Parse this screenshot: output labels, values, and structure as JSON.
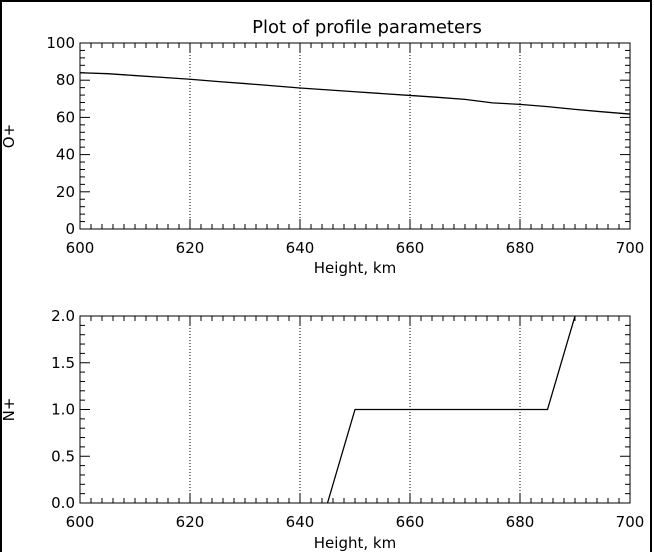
{
  "figure": {
    "title": "Plot of profile parameters"
  },
  "chart_data": [
    {
      "type": "line",
      "title": "Plot of profile parameters",
      "xlabel": "Height, km",
      "ylabel": "O+",
      "xlim": [
        600,
        700
      ],
      "ylim": [
        0,
        100
      ],
      "x_ticks": [
        600,
        620,
        640,
        660,
        680,
        700
      ],
      "x_tick_labels": [
        "600",
        "620",
        "640",
        "660",
        "680",
        "700"
      ],
      "y_ticks": [
        0,
        20,
        40,
        60,
        80,
        100
      ],
      "y_tick_labels": [
        "0",
        "20",
        "40",
        "60",
        "80",
        "100"
      ],
      "vertical_grid_x": [
        620,
        640,
        660,
        680
      ],
      "series": [
        {
          "x": [
            600,
            605,
            610,
            615,
            620,
            625,
            630,
            635,
            640,
            645,
            650,
            655,
            660,
            665,
            670,
            675,
            680,
            685,
            690,
            695,
            700
          ],
          "values": [
            84,
            83.5,
            82.5,
            81.5,
            80.5,
            79.3,
            78.2,
            77,
            75.8,
            74.8,
            73.8,
            72.8,
            71.8,
            70.8,
            69.7,
            67.8,
            67,
            65.8,
            64.3,
            63,
            61.8
          ]
        }
      ]
    },
    {
      "type": "line",
      "title": "",
      "xlabel": "Height, km",
      "ylabel": "N+",
      "xlim": [
        600,
        700
      ],
      "ylim": [
        0,
        2
      ],
      "x_ticks": [
        600,
        620,
        640,
        660,
        680,
        700
      ],
      "x_tick_labels": [
        "600",
        "620",
        "640",
        "660",
        "680",
        "700"
      ],
      "y_ticks": [
        0,
        0.5,
        1,
        1.5,
        2
      ],
      "y_tick_labels": [
        "0.0",
        "0.5",
        "1.0",
        "1.5",
        "2.0"
      ],
      "vertical_grid_x": [
        620,
        640,
        660,
        680
      ],
      "series": [
        {
          "x": [
            645,
            650,
            685,
            690
          ],
          "values": [
            0,
            1,
            1,
            2
          ]
        }
      ]
    }
  ]
}
